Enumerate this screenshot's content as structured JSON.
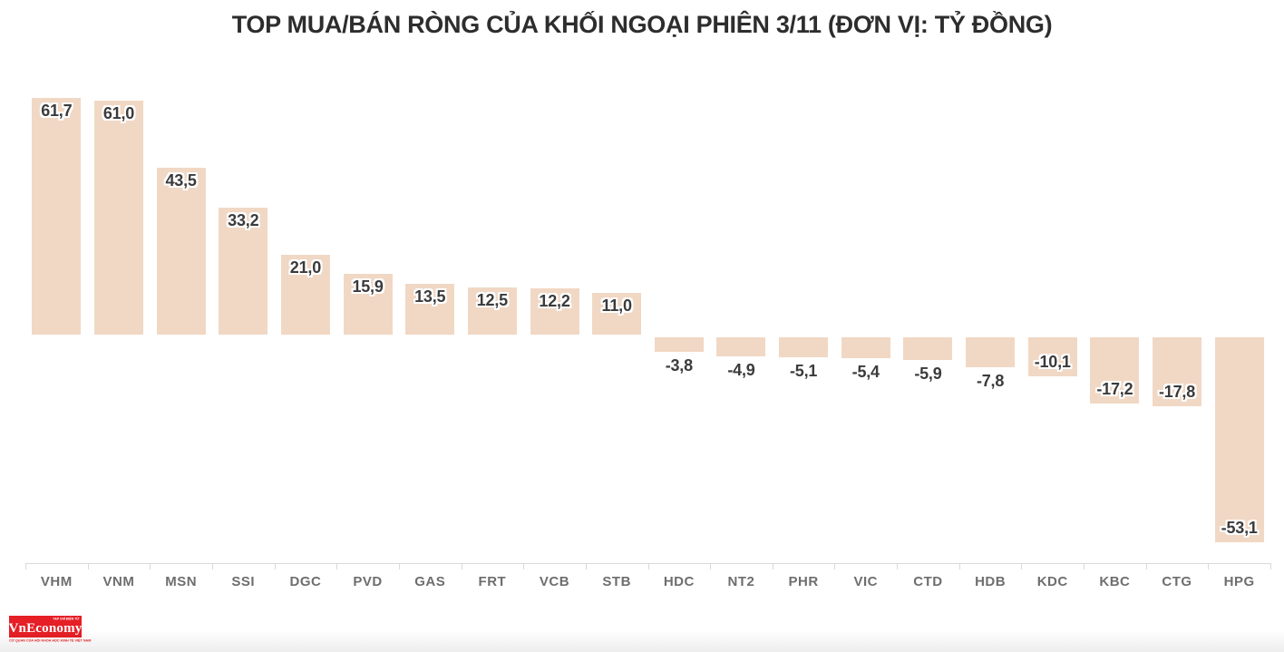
{
  "chart": {
    "title": "TOP MUA/BÁN RÒNG CỦA KHỐI NGOẠI PHIÊN 3/11 (ĐƠN VỊ: TỶ ĐỒNG)"
  },
  "chart_data": {
    "type": "bar",
    "title": "TOP MUA/BÁN RÒNG CỦA KHỐI NGOẠI PHIÊN 3/11 (ĐƠN VỊ: TỶ ĐỒNG)",
    "categories": [
      "VHM",
      "VNM",
      "MSN",
      "SSI",
      "DGC",
      "PVD",
      "GAS",
      "FRT",
      "VCB",
      "STB",
      "HDC",
      "NT2",
      "PHR",
      "VIC",
      "CTD",
      "HDB",
      "KDC",
      "KBC",
      "CTG",
      "HPG"
    ],
    "values": [
      61.7,
      61.0,
      43.5,
      33.2,
      21.0,
      15.9,
      13.5,
      12.5,
      12.2,
      11.0,
      -3.8,
      -4.9,
      -5.1,
      -5.4,
      -5.9,
      -7.8,
      -10.1,
      -17.2,
      -17.8,
      -53.1
    ],
    "value_labels": [
      "61,7",
      "61,0",
      "43,5",
      "33,2",
      "21,0",
      "15,9",
      "13,5",
      "12,5",
      "12,2",
      "11,0",
      "-3,8",
      "-4,9",
      "-5,1",
      "-5,4",
      "-5,9",
      "-7,8",
      "-10,1",
      "-17,2",
      "-17,8",
      "-53,1"
    ],
    "xlabel": "",
    "ylabel": "",
    "ylim": [
      -60,
      70
    ],
    "grid": false,
    "legend": false,
    "orientation": "vertical",
    "bar_color": "#f1d8c4",
    "value_label_color": "#3b3b3b",
    "category_label_color": "#6e6e6e",
    "axis_color": "#d9d9d9"
  },
  "footer": {
    "logo_top_text": "TẠP CHÍ ĐIỆN TỬ",
    "logo_text": "VnEconomy",
    "logo_sub_text": "CƠ QUAN CỦA HỘI KHOA HỌC KINH TẾ VIỆT NAM",
    "logo_bg_color": "#e61e25"
  }
}
